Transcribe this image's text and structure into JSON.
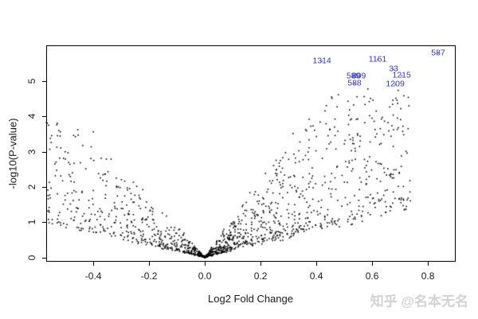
{
  "chart_data": {
    "type": "scatter",
    "title": "",
    "xlabel": "Log2 Fold Change",
    "ylabel": "-log10(P-value)",
    "xlim": [
      -0.569,
      0.897
    ],
    "ylim": [
      -0.095,
      6.01
    ],
    "x_ticks": [
      {
        "value": -0.4,
        "label": "-0.4"
      },
      {
        "value": -0.2,
        "label": "-0.2"
      },
      {
        "value": 0.0,
        "label": "0.0"
      },
      {
        "value": 0.2,
        "label": "0.2"
      },
      {
        "value": 0.4,
        "label": "0.4"
      },
      {
        "value": 0.6,
        "label": "0.6"
      },
      {
        "value": 0.8,
        "label": "0.8"
      }
    ],
    "y_ticks": [
      {
        "value": 0,
        "label": "0"
      },
      {
        "value": 1,
        "label": "1"
      },
      {
        "value": 2,
        "label": "2"
      },
      {
        "value": 3,
        "label": "3"
      },
      {
        "value": 4,
        "label": "4"
      },
      {
        "value": 5,
        "label": "5"
      }
    ],
    "grid": false,
    "legend": "none",
    "point_color": "#000000",
    "label_color": "#3535c4",
    "labeled_points": [
      {
        "label": "1314",
        "x": 0.42,
        "y": 5.56
      },
      {
        "label": "1161",
        "x": 0.62,
        "y": 5.6
      },
      {
        "label": "587",
        "x": 0.837,
        "y": 5.79
      },
      {
        "label": "33",
        "x": 0.677,
        "y": 5.33
      },
      {
        "label": "1215",
        "x": 0.706,
        "y": 5.15
      },
      {
        "label": "1209",
        "x": 0.683,
        "y": 4.9
      },
      {
        "label": "588",
        "x": 0.537,
        "y": 4.93
      },
      {
        "label": "589",
        "x": 0.533,
        "y": 5.13
      },
      {
        "label": "809",
        "x": 0.553,
        "y": 5.13
      }
    ],
    "scatter_generator": {
      "seed": 42,
      "point_size": 1.6,
      "arms": [
        {
          "side": -1,
          "count": 560,
          "x_max": 0.58,
          "x_exp": 1.6,
          "slope_base": 1.8,
          "slope_spread": 6.5,
          "y_cap": 3.85
        },
        {
          "side": 1,
          "count": 900,
          "x_max": 0.74,
          "x_exp": 1.7,
          "slope_base": 2.0,
          "slope_spread": 8.5,
          "y_cap": 4.78
        }
      ]
    }
  },
  "watermark": {
    "text": "知乎 @名本无名"
  }
}
